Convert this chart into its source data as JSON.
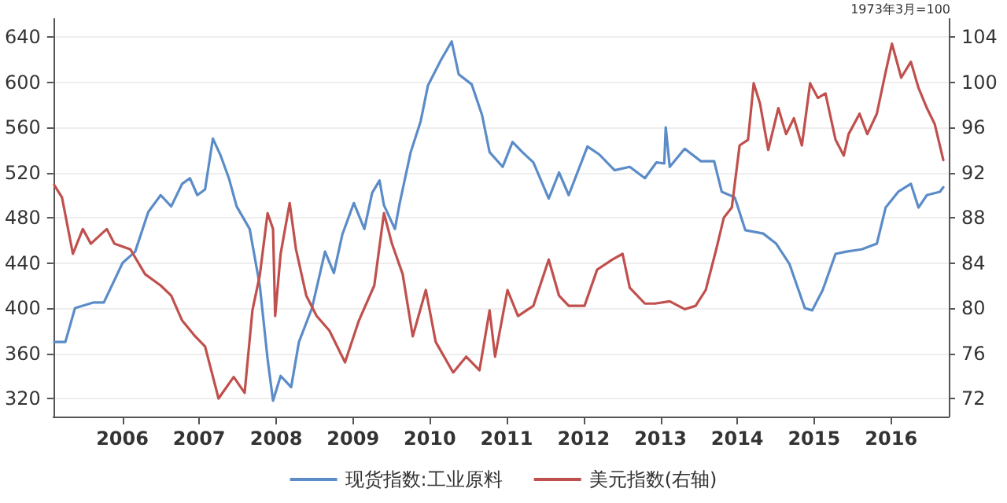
{
  "chart_data": {
    "type": "line",
    "annotations": [
      "1973年3月=100"
    ],
    "xlim": [
      "2006-02-06",
      "2017-10-01"
    ],
    "xticks": [
      {
        "value": "2006-12-31",
        "label": "2006"
      },
      {
        "value": "2007-12-31",
        "label": "2007"
      },
      {
        "value": "2008-12-31",
        "label": "2008"
      },
      {
        "value": "2009-12-31",
        "label": "2009"
      },
      {
        "value": "2010-12-31",
        "label": "2010"
      },
      {
        "value": "2011-12-31",
        "label": "2011"
      },
      {
        "value": "2012-12-31",
        "label": "2012"
      },
      {
        "value": "2013-12-31",
        "label": "2013"
      },
      {
        "value": "2014-12-31",
        "label": "2014"
      },
      {
        "value": "2015-12-31",
        "label": "2015"
      },
      {
        "value": "2016-12-31",
        "label": "2016"
      }
    ],
    "ylim": [
      304,
      656
    ],
    "yticks": [
      320,
      360,
      400,
      440,
      480,
      520,
      560,
      600,
      640
    ],
    "y2lim": [
      70.4,
      105.6
    ],
    "y2ticks": [
      72,
      76,
      80,
      84,
      88,
      92,
      96,
      100,
      104
    ],
    "grid": "y",
    "legend": "bottom",
    "marker": "none",
    "line_style": "solid",
    "series": [
      {
        "name": "现货指数:工业原料",
        "color": "#5b8cc8",
        "x": [
          "2006-02-10",
          "2006-04-04",
          "2006-05-20",
          "2006-08-17",
          "2006-10-04",
          "2007-01-01",
          "2007-03-02",
          "2007-05-03",
          "2007-07-01",
          "2007-08-20",
          "2007-10-11",
          "2007-11-17",
          "2007-12-22",
          "2008-01-28",
          "2008-03-05",
          "2008-04-11",
          "2008-05-20",
          "2008-06-26",
          "2008-08-27",
          "2008-10-14",
          "2008-11-20",
          "2008-12-16",
          "2009-01-21",
          "2009-03-12",
          "2009-04-18",
          "2009-06-19",
          "2009-08-20",
          "2009-10-01",
          "2009-11-10",
          "2010-01-04",
          "2010-02-23",
          "2010-04-01",
          "2010-05-06",
          "2010-05-27",
          "2010-07-18",
          "2010-08-10",
          "2010-10-01",
          "2010-11-17",
          "2010-12-22",
          "2011-02-23",
          "2011-04-14",
          "2011-05-17",
          "2011-07-18",
          "2011-09-05",
          "2011-10-11",
          "2011-12-12",
          "2012-01-28",
          "2012-03-15",
          "2012-05-06",
          "2012-07-18",
          "2012-09-05",
          "2012-10-21",
          "2013-01-18",
          "2013-03-15",
          "2013-05-27",
          "2013-08-07",
          "2013-10-18",
          "2013-12-12",
          "2014-01-18",
          "2014-01-25",
          "2014-02-13",
          "2014-04-25",
          "2014-07-11",
          "2014-09-12",
          "2014-10-18",
          "2014-12-19",
          "2015-02-07",
          "2015-05-03",
          "2015-07-04",
          "2015-09-05",
          "2015-11-17",
          "2015-12-22",
          "2016-02-10",
          "2016-04-11",
          "2016-06-02",
          "2016-08-13",
          "2016-10-24",
          "2016-12-05",
          "2017-02-03",
          "2017-04-04",
          "2017-05-10",
          "2017-06-19",
          "2017-08-20",
          "2017-09-05"
        ],
        "values": [
          370,
          370,
          400,
          405,
          405,
          440,
          450,
          485,
          500,
          490,
          510,
          515,
          500,
          505,
          550,
          535,
          515,
          490,
          470,
          420,
          355,
          318,
          340,
          330,
          370,
          400,
          450,
          431,
          465,
          493,
          470,
          502,
          513,
          491,
          470,
          493,
          538,
          565,
          597,
          620,
          636,
          607,
          598,
          571,
          538,
          525,
          547,
          538,
          529,
          497,
          520,
          500,
          543,
          536,
          522,
          525,
          515,
          529,
          528,
          560,
          525,
          541,
          530,
          530,
          503,
          498,
          469,
          466,
          457,
          439,
          400,
          398,
          416,
          448,
          450,
          452,
          457,
          489,
          503,
          510,
          489,
          500,
          503,
          507
        ]
      },
      {
        "name": "美元指数(右轴)",
        "color": "#c0504d",
        "axis": "y2",
        "x": [
          "2006-02-10",
          "2006-03-19",
          "2006-05-10",
          "2006-06-26",
          "2006-08-03",
          "2006-10-18",
          "2006-11-23",
          "2007-02-07",
          "2007-04-18",
          "2007-07-01",
          "2007-08-20",
          "2007-10-11",
          "2007-12-12",
          "2008-01-28",
          "2008-04-01",
          "2008-06-12",
          "2008-08-03",
          "2008-09-09",
          "2008-10-14",
          "2008-11-20",
          "2008-12-16",
          "2008-12-26",
          "2009-01-21",
          "2009-03-05",
          "2009-04-04",
          "2009-05-23",
          "2009-07-11",
          "2009-09-10",
          "2009-11-23",
          "2010-01-28",
          "2010-04-11",
          "2010-05-27",
          "2010-07-04",
          "2010-08-24",
          "2010-10-11",
          "2010-12-12",
          "2011-01-28",
          "2011-04-21",
          "2011-06-22",
          "2011-08-24",
          "2011-10-11",
          "2011-11-06",
          "2012-01-04",
          "2012-02-23",
          "2012-05-06",
          "2012-07-18",
          "2012-09-05",
          "2012-10-21",
          "2013-01-04",
          "2013-03-05",
          "2013-05-17",
          "2013-07-04",
          "2013-08-07",
          "2013-10-18",
          "2013-12-05",
          "2014-02-13",
          "2014-04-25",
          "2014-06-16",
          "2014-08-03",
          "2014-09-22",
          "2014-10-28",
          "2014-12-05",
          "2015-01-11",
          "2015-02-20",
          "2015-03-19",
          "2015-04-18",
          "2015-05-27",
          "2015-07-14",
          "2015-08-20",
          "2015-09-26",
          "2015-11-03",
          "2015-12-12",
          "2016-01-18",
          "2016-02-23",
          "2016-04-11",
          "2016-05-20",
          "2016-06-12",
          "2016-08-03",
          "2016-09-09",
          "2016-10-24",
          "2016-12-05",
          "2017-01-04",
          "2017-02-17",
          "2017-04-04",
          "2017-05-10",
          "2017-06-19",
          "2017-07-26",
          "2017-09-05"
        ],
        "values": [
          90.9,
          89.8,
          84.8,
          87.0,
          85.7,
          87.0,
          85.7,
          85.2,
          83.0,
          82.0,
          81.1,
          78.9,
          77.5,
          76.6,
          72.0,
          73.9,
          72.5,
          79.8,
          82.9,
          88.4,
          87.0,
          79.3,
          84.8,
          89.3,
          85.2,
          81.1,
          79.3,
          78.0,
          75.2,
          78.9,
          82.0,
          88.4,
          85.7,
          83.0,
          77.5,
          81.6,
          77.0,
          74.3,
          75.7,
          74.5,
          79.8,
          75.7,
          81.6,
          79.3,
          80.2,
          84.3,
          81.1,
          80.2,
          80.2,
          83.4,
          84.3,
          84.8,
          81.8,
          80.4,
          80.4,
          80.6,
          79.9,
          80.2,
          81.6,
          85.2,
          88.0,
          88.9,
          94.4,
          94.9,
          99.9,
          98.1,
          94.0,
          97.7,
          95.4,
          96.8,
          94.4,
          99.9,
          98.6,
          99.0,
          94.9,
          93.5,
          95.4,
          97.2,
          95.4,
          97.2,
          100.9,
          103.4,
          100.4,
          101.8,
          99.5,
          97.7,
          96.3,
          93.1
        ]
      }
    ]
  }
}
